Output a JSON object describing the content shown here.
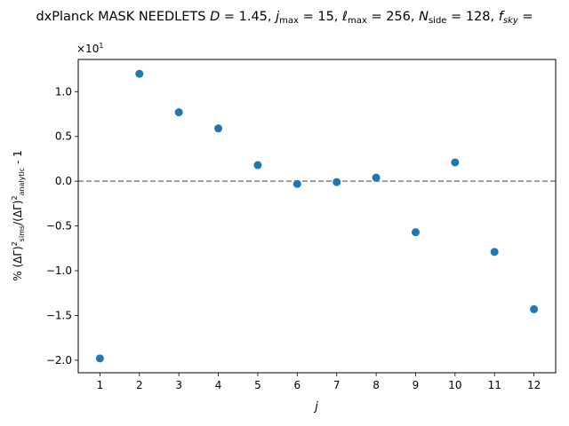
{
  "chart_data": {
    "type": "scatter",
    "title": "dxPlanck MASK NEEDLETS D = 1.45,  j_max = 15,  ℓ_max = 256,  N_side = 128, f_sky =",
    "title_parts": {
      "prefix": "dxPlanck MASK NEEDLETS ",
      "D": "1.45",
      "jmax": "15",
      "lmax": "256",
      "nside": "128"
    },
    "xlabel": "j",
    "ylabel": "% (ΔΓ)²_sims/(ΔΓ)²_analytic - 1",
    "offset_label": "×10¹",
    "x": [
      1,
      2,
      3,
      4,
      5,
      6,
      7,
      8,
      9,
      10,
      11,
      12
    ],
    "y": [
      -1.98,
      1.2,
      0.77,
      0.59,
      0.18,
      -0.03,
      -0.01,
      0.04,
      -0.57,
      0.21,
      -0.79,
      -1.43
    ],
    "y_scale": 10,
    "xlim": [
      0.45,
      12.55
    ],
    "ylim": [
      -2.14,
      1.36
    ],
    "xticks": [
      1,
      2,
      3,
      4,
      5,
      6,
      7,
      8,
      9,
      10,
      11,
      12
    ],
    "yticks": [
      -2.0,
      -1.5,
      -1.0,
      -0.5,
      0.0,
      0.5,
      1.0
    ],
    "ytick_labels": [
      "−2.0",
      "−1.5",
      "−1.0",
      "−0.5",
      "0.0",
      "0.5",
      "1.0"
    ],
    "reference_line": {
      "y": 0,
      "style": "dashed"
    },
    "grid": false,
    "legend": "none",
    "colors": {
      "points": "#1f77b4",
      "reference_line": "#808080"
    }
  }
}
